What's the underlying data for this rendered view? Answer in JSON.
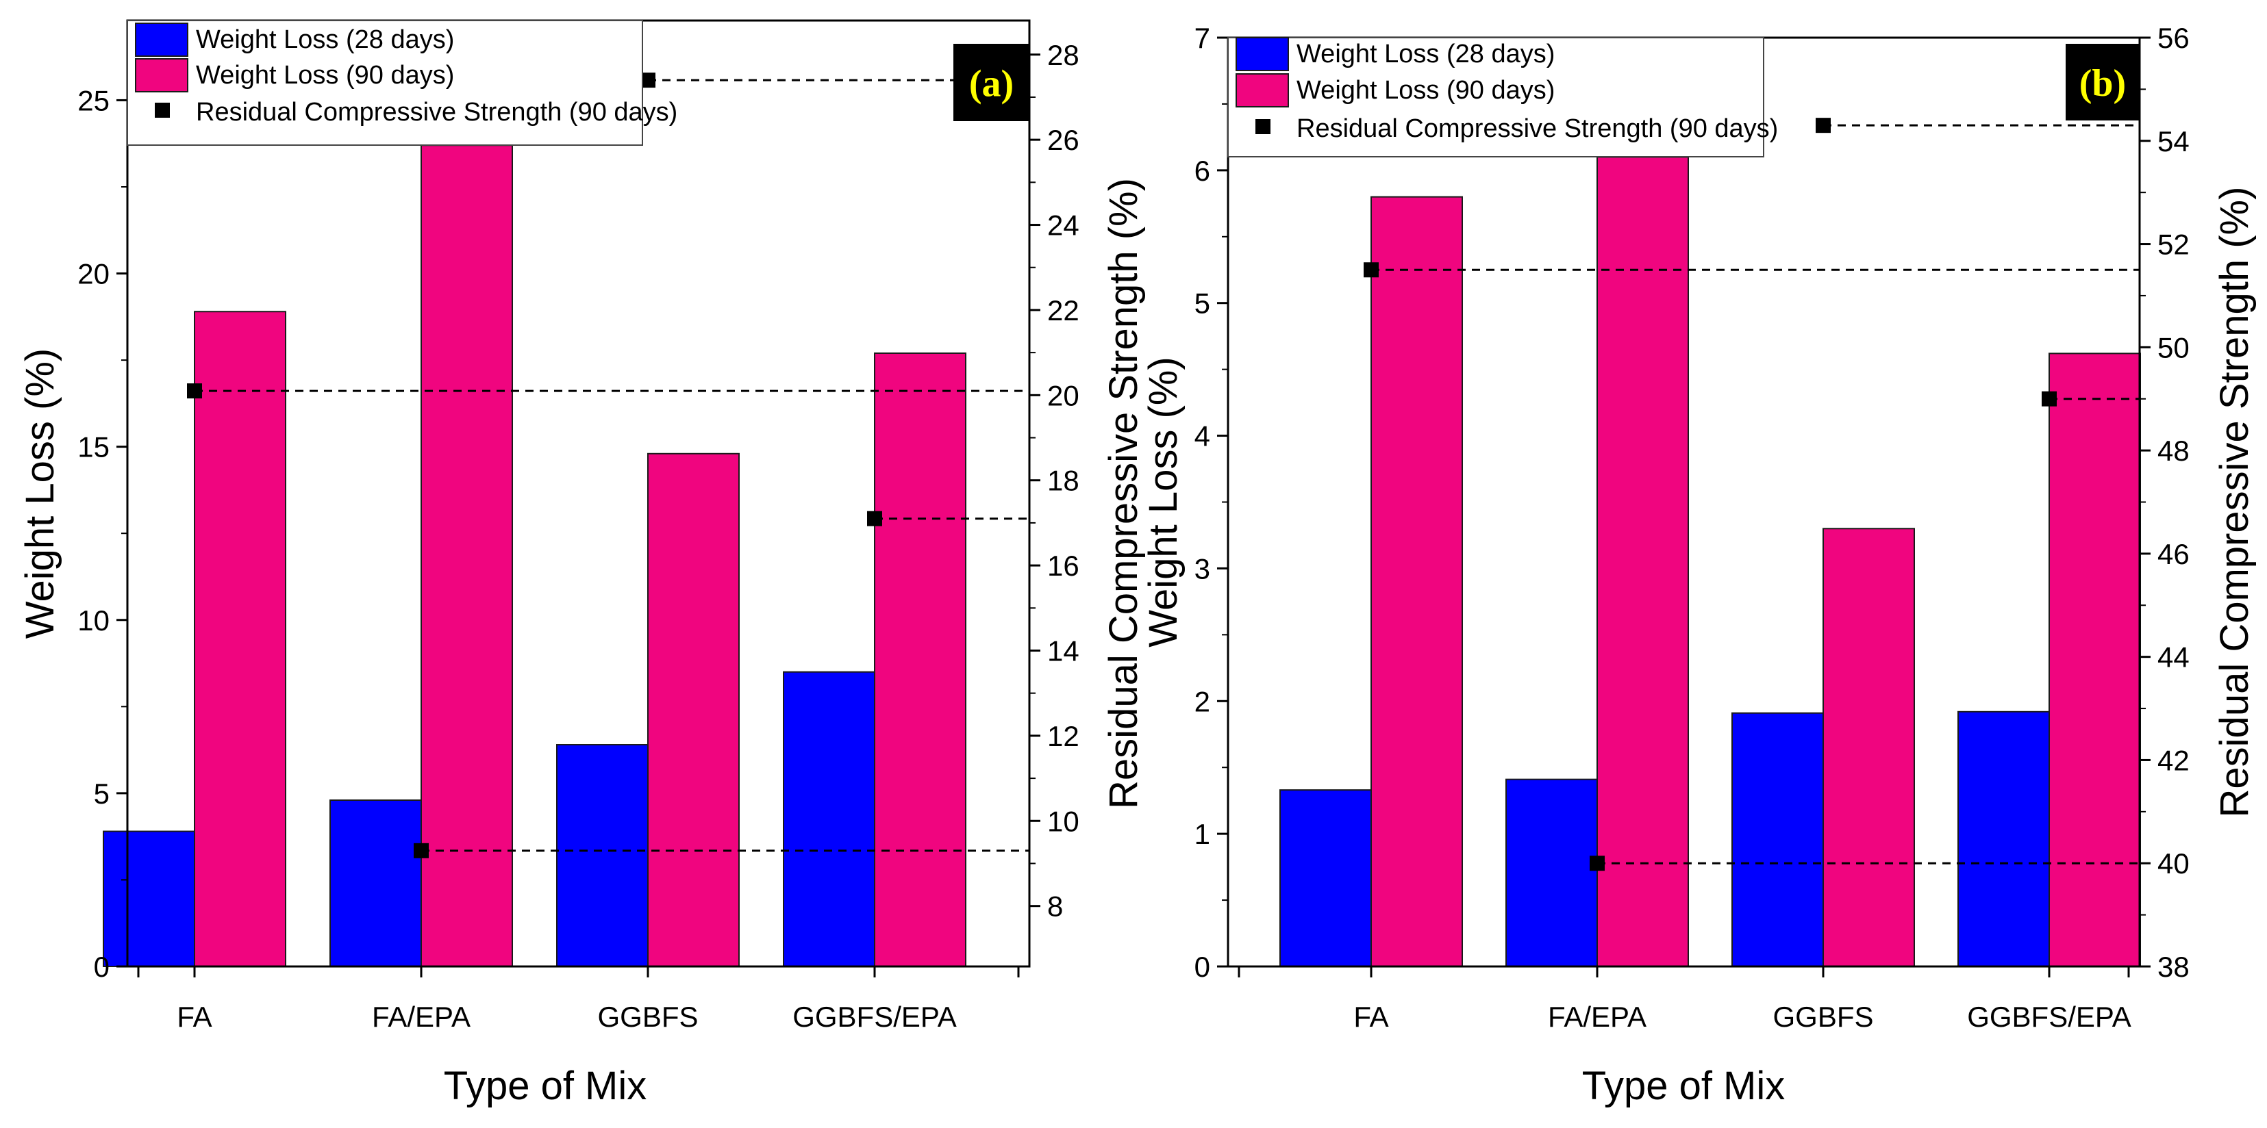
{
  "chart_data": [
    {
      "type": "bar",
      "panel": "(a)",
      "xlabel": "Type of Mix",
      "ylabel": "Weight Loss (%)",
      "y2label": "Residual Compressive Strength (%)",
      "categories": [
        "FA",
        "FA/EPA",
        "GGBFS",
        "GGBFS/EPA"
      ],
      "ylim": [
        0,
        27.3
      ],
      "y2lim": [
        6.58,
        28.8
      ],
      "yticks": [
        "0",
        "5",
        "10",
        "15",
        "20",
        "25"
      ],
      "y2ticks": [
        "8",
        "10",
        "12",
        "14",
        "16",
        "18",
        "20",
        "22",
        "24",
        "26",
        "28"
      ],
      "series": [
        {
          "name": "Weight Loss (28 days)",
          "color": "#0000ff",
          "values": [
            3.9,
            4.8,
            6.4,
            8.5
          ]
        },
        {
          "name": "Weight Loss (90 days)",
          "color": "#f0057f",
          "values": [
            18.9,
            23.7,
            14.8,
            17.7
          ]
        }
      ],
      "scatter": {
        "name": "Residual Compressive Strength (90 days)",
        "color": "#000000",
        "values": [
          20.1,
          9.3,
          27.4,
          17.1
        ]
      },
      "legend": [
        "Weight Loss (28 days)",
        "Weight Loss (90 days)",
        "Residual Compressive Strength (90 days)"
      ],
      "legend_position": "top-left"
    },
    {
      "type": "bar",
      "panel": "(b)",
      "xlabel": "Type of Mix",
      "ylabel": "Weight Loss (%)",
      "y2label": "Residual Compressive Strength (%)",
      "categories": [
        "FA",
        "FA/EPA",
        "GGBFS",
        "GGBFS/EPA"
      ],
      "ylim": [
        0,
        7
      ],
      "y2lim": [
        38,
        56
      ],
      "yticks": [
        "0",
        "1",
        "2",
        "3",
        "4",
        "5",
        "6",
        "7"
      ],
      "y2ticks": [
        "38",
        "40",
        "42",
        "44",
        "46",
        "48",
        "50",
        "52",
        "54",
        "56"
      ],
      "series": [
        {
          "name": "Weight Loss (28 days)",
          "color": "#0000ff",
          "values": [
            1.33,
            1.41,
            1.91,
            1.92
          ]
        },
        {
          "name": "Weight Loss (90 days)",
          "color": "#f0057f",
          "values": [
            5.8,
            6.1,
            3.3,
            4.62
          ]
        }
      ],
      "scatter": {
        "name": "Residual Compressive Strength (90 days)",
        "color": "#000000",
        "values": [
          51.5,
          40.0,
          54.3,
          49.0
        ]
      },
      "legend": [
        "Weight Loss (28 days)",
        "Weight Loss (90 days)",
        "Residual Compressive Strength (90 days)"
      ],
      "legend_position": "top-left"
    }
  ]
}
